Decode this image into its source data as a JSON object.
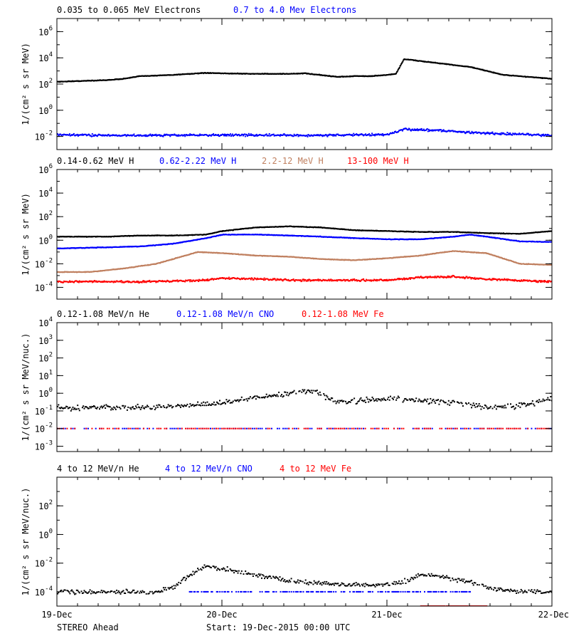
{
  "footer": {
    "left": "STEREO Ahead",
    "center": "Start: 19-Dec-2015 00:00 UTC"
  },
  "x_ticks": [
    "19-Dec",
    "20-Dec",
    "21-Dec",
    "22-Dec"
  ],
  "chart_data": [
    {
      "type": "scatter",
      "y_scale": "log",
      "ylim": [
        0.001,
        10000000
      ],
      "ylabel": "1/(cm² s sr MeV)",
      "y_ticks": [
        {
          "base": "10",
          "exp": "-2",
          "value": 0.01
        },
        {
          "base": "10",
          "exp": "0",
          "value": 1
        },
        {
          "base": "10",
          "exp": "2",
          "value": 100
        },
        {
          "base": "10",
          "exp": "4",
          "value": 10000
        },
        {
          "base": "10",
          "exp": "6",
          "value": 1000000
        }
      ],
      "xlim_days": [
        0,
        3
      ],
      "legend": [
        {
          "name": "0.035 to 0.065 MeV Electrons",
          "color": "#000000"
        },
        {
          "name": "0.7 to 4.0 Mev Electrons",
          "color": "#0000ff"
        }
      ],
      "series": [
        {
          "name": "0.035 to 0.065 MeV Electrons",
          "color": "#000000",
          "style": "dense",
          "x": [
            0,
            0.3,
            0.4,
            0.5,
            0.7,
            0.8,
            0.9,
            1.0,
            1.2,
            1.4,
            1.5,
            1.7,
            1.8,
            1.9,
            2.0,
            2.05,
            2.1,
            2.3,
            2.5,
            2.7,
            3.0
          ],
          "y": [
            150,
            200,
            250,
            400,
            500,
            600,
            700,
            650,
            600,
            600,
            650,
            350,
            400,
            400,
            500,
            600,
            8000,
            4000,
            2000,
            500,
            250
          ]
        },
        {
          "name": "0.7 to 4.0 Mev Electrons",
          "color": "#0000ff",
          "style": "scatter",
          "x": [
            0,
            0.5,
            1.0,
            1.5,
            2.0,
            2.1,
            2.3,
            2.5,
            3.0
          ],
          "y": [
            0.013,
            0.012,
            0.013,
            0.012,
            0.014,
            0.035,
            0.03,
            0.02,
            0.012
          ]
        }
      ]
    },
    {
      "type": "scatter",
      "y_scale": "log",
      "ylim": [
        1e-05,
        1000000
      ],
      "ylabel": "1/(cm² s sr MeV)",
      "y_ticks": [
        {
          "base": "10",
          "exp": "-4",
          "value": 0.0001
        },
        {
          "base": "10",
          "exp": "-2",
          "value": 0.01
        },
        {
          "base": "10",
          "exp": "0",
          "value": 1
        },
        {
          "base": "10",
          "exp": "2",
          "value": 100
        },
        {
          "base": "10",
          "exp": "4",
          "value": 10000
        },
        {
          "base": "10",
          "exp": "6",
          "value": 1000000
        }
      ],
      "xlim_days": [
        0,
        3
      ],
      "legend": [
        {
          "name": "0.14-0.62 MeV H",
          "color": "#000000"
        },
        {
          "name": "0.62-2.22 MeV H",
          "color": "#0000ff"
        },
        {
          "name": "2.2-12 MeV H",
          "color": "#c08060"
        },
        {
          "name": "13-100 MeV H",
          "color": "#ff0000"
        }
      ],
      "series": [
        {
          "name": "0.14-0.62 MeV H",
          "color": "#000000",
          "style": "dense",
          "x": [
            0,
            0.3,
            0.5,
            0.7,
            0.9,
            1.0,
            1.2,
            1.4,
            1.6,
            1.8,
            2.0,
            2.2,
            2.4,
            2.6,
            2.8,
            3.0
          ],
          "y": [
            2,
            2,
            2.5,
            2.5,
            3,
            6,
            12,
            15,
            12,
            7,
            6,
            5,
            5,
            4,
            3.5,
            6
          ]
        },
        {
          "name": "0.62-2.22 MeV H",
          "color": "#0000ff",
          "style": "dense",
          "x": [
            0,
            0.3,
            0.5,
            0.7,
            0.9,
            1.0,
            1.2,
            1.4,
            1.6,
            1.8,
            2.0,
            2.2,
            2.4,
            2.5,
            2.6,
            2.8,
            3.0
          ],
          "y": [
            0.2,
            0.25,
            0.3,
            0.5,
            1.5,
            3,
            3,
            2.5,
            2,
            1.5,
            1.2,
            1.2,
            2,
            3,
            2,
            0.8,
            0.7
          ]
        },
        {
          "name": "2.2-12 MeV H",
          "color": "#c08060",
          "style": "dense",
          "x": [
            0,
            0.2,
            0.4,
            0.6,
            0.75,
            0.85,
            1.0,
            1.2,
            1.4,
            1.6,
            1.8,
            2.0,
            2.2,
            2.3,
            2.4,
            2.6,
            2.8,
            3.0
          ],
          "y": [
            0.002,
            0.002,
            0.004,
            0.01,
            0.04,
            0.1,
            0.08,
            0.05,
            0.04,
            0.025,
            0.02,
            0.03,
            0.05,
            0.08,
            0.12,
            0.08,
            0.01,
            0.008
          ]
        },
        {
          "name": "13-100 MeV H",
          "color": "#ff0000",
          "style": "scatter",
          "x": [
            0,
            0.5,
            0.9,
            1.0,
            1.5,
            2.0,
            2.2,
            2.4,
            2.6,
            3.0
          ],
          "y": [
            0.0003,
            0.0003,
            0.0004,
            0.0006,
            0.0004,
            0.0004,
            0.0007,
            0.0008,
            0.0005,
            0.0003
          ]
        }
      ]
    },
    {
      "type": "scatter",
      "y_scale": "log",
      "ylim": [
        0.0005,
        10000
      ],
      "ylabel": "1/(cm² s sr MeV/nuc.)",
      "y_ticks": [
        {
          "base": "10",
          "exp": "-3",
          "value": 0.001
        },
        {
          "base": "10",
          "exp": "-2",
          "value": 0.01
        },
        {
          "base": "10",
          "exp": "-1",
          "value": 0.1
        },
        {
          "base": "10",
          "exp": "0",
          "value": 1
        },
        {
          "base": "10",
          "exp": "1",
          "value": 10
        },
        {
          "base": "10",
          "exp": "2",
          "value": 100
        },
        {
          "base": "10",
          "exp": "3",
          "value": 1000
        },
        {
          "base": "10",
          "exp": "4",
          "value": 10000
        }
      ],
      "xlim_days": [
        0,
        3
      ],
      "legend": [
        {
          "name": "0.12-1.08 MeV/n He",
          "color": "#000000"
        },
        {
          "name": "0.12-1.08 MeV/n CNO",
          "color": "#0000ff"
        },
        {
          "name": "0.12-1.08 MeV Fe",
          "color": "#ff0000"
        }
      ],
      "series": [
        {
          "name": "0.12-1.08 MeV/n He",
          "color": "#000000",
          "style": "sparse",
          "x": [
            0,
            0.5,
            0.8,
            1.0,
            1.2,
            1.4,
            1.55,
            1.7,
            2.0,
            2.2,
            2.4,
            2.6,
            2.8,
            3.0
          ],
          "y": [
            0.15,
            0.15,
            0.2,
            0.3,
            0.6,
            1.0,
            1.5,
            0.3,
            0.5,
            0.4,
            0.3,
            0.15,
            0.2,
            0.5
          ]
        },
        {
          "name": "0.12-1.08 MeV/n CNO",
          "color": "#0000ff",
          "style": "floor",
          "x": [
            0,
            3
          ],
          "y": [
            0.01,
            0.01
          ]
        },
        {
          "name": "0.12-1.08 MeV Fe",
          "color": "#ff0000",
          "style": "floor",
          "x": [
            0,
            3
          ],
          "y": [
            0.01,
            0.01
          ]
        }
      ]
    },
    {
      "type": "scatter",
      "y_scale": "log",
      "ylim": [
        1e-05,
        10000
      ],
      "ylabel": "1/(cm² s sr MeV/nuc.)",
      "y_ticks": [
        {
          "base": "10",
          "exp": "-4",
          "value": 0.0001
        },
        {
          "base": "10",
          "exp": "-2",
          "value": 0.01
        },
        {
          "base": "10",
          "exp": "0",
          "value": 1
        },
        {
          "base": "10",
          "exp": "2",
          "value": 100
        }
      ],
      "xlim_days": [
        0,
        3
      ],
      "legend": [
        {
          "name": "4 to 12 MeV/n He",
          "color": "#000000"
        },
        {
          "name": "4 to 12 MeV/n CNO",
          "color": "#0000ff"
        },
        {
          "name": "4 to 12 MeV Fe",
          "color": "#ff0000"
        }
      ],
      "series": [
        {
          "name": "4 to 12 MeV/n He",
          "color": "#000000",
          "style": "sparse",
          "x": [
            0,
            0.3,
            0.6,
            0.7,
            0.8,
            0.9,
            1.0,
            1.2,
            1.4,
            1.6,
            1.8,
            2.0,
            2.1,
            2.2,
            2.3,
            2.5,
            2.6,
            2.8,
            3.0
          ],
          "y": [
            0.0001,
            0.0001,
            0.0001,
            0.0002,
            0.0015,
            0.006,
            0.004,
            0.0015,
            0.0006,
            0.0004,
            0.0003,
            0.0003,
            0.0005,
            0.0015,
            0.0012,
            0.0005,
            0.0002,
            0.0001,
            0.0001
          ]
        },
        {
          "name": "4 to 12 MeV/n CNO",
          "color": "#0000ff",
          "style": "floor",
          "x": [
            0.8,
            2.5
          ],
          "y": [
            0.0001,
            0.0001
          ]
        },
        {
          "name": "4 to 12 MeV Fe",
          "color": "#ff0000",
          "style": "floor",
          "x": [
            2.2,
            2.6
          ],
          "y": [
            1e-05,
            1e-05
          ]
        }
      ]
    }
  ]
}
